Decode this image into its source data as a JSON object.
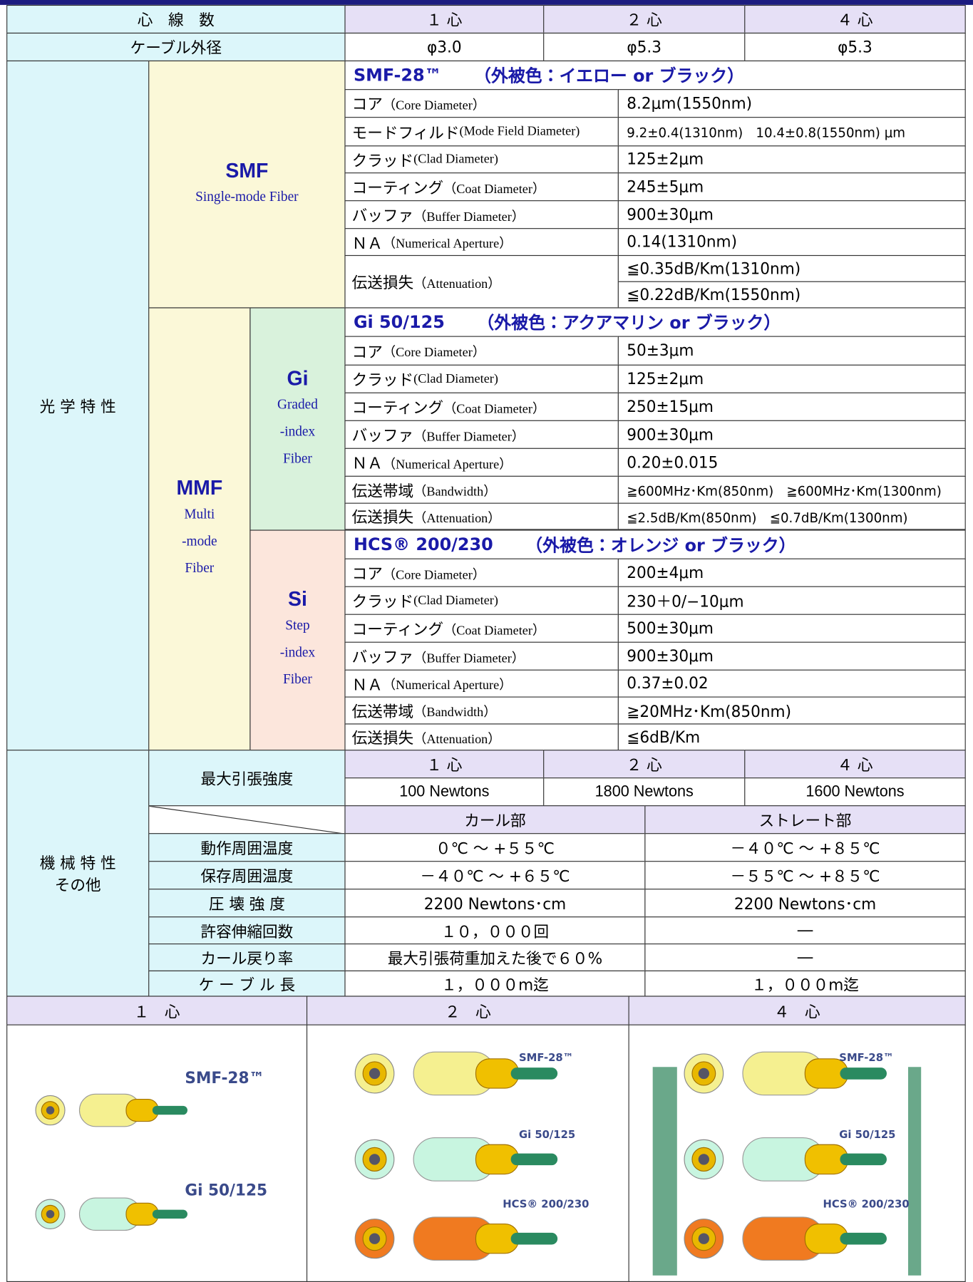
{
  "header": {
    "label": "心　線　数",
    "cols": [
      "１ 心",
      "２ 心",
      "４ 心"
    ]
  },
  "diameter": {
    "label": "ケーブル外径",
    "values": [
      "φ3.0",
      "φ5.3",
      "φ5.3"
    ]
  },
  "optical": {
    "label": "光 学 特 性",
    "smf": {
      "name": "SMF",
      "desc": [
        "Single-mode Fiber"
      ],
      "fiber": "SMF-28™",
      "jacket": "（外被色：イエロー or ブラック）",
      "rows": [
        {
          "ja": "コア",
          "en": "（Core Diameter）",
          "values": [
            "8.2μm(1550nm)"
          ]
        },
        {
          "ja": "モードフィルド",
          "en": "(Mode Field Diameter)",
          "values": [
            "9.2±0.4(1310nm)　10.4±0.8(1550nm) μm"
          ]
        },
        {
          "ja": "クラッド",
          "en": "(Clad Diameter)",
          "values": [
            "125±2μm"
          ]
        },
        {
          "ja": "コーティング",
          "en": "（Coat Diameter）",
          "values": [
            "245±5μm"
          ]
        },
        {
          "ja": "バッファ",
          "en": "（Buffer Diameter）",
          "values": [
            "900±30μm"
          ]
        },
        {
          "ja": "ＮＡ",
          "en": "（Numerical Aperture）",
          "values": [
            "0.14(1310nm)"
          ]
        },
        {
          "ja": "伝送損失",
          "en": "（Attenuation）",
          "values": [
            "≦0.35dB/Km(1310nm)",
            "≦0.22dB/Km(1550nm)"
          ]
        }
      ]
    },
    "mmf": {
      "name": "MMF",
      "desc": [
        "Multi",
        "-mode",
        "Fiber"
      ]
    },
    "gi": {
      "name": "Gi",
      "desc": [
        "Graded",
        "-index",
        "Fiber"
      ],
      "fiber": "Gi 50/125",
      "jacket": "（外被色：アクアマリン or ブラック）",
      "rows": [
        {
          "ja": "コア",
          "en": "（Core Diameter）",
          "values": [
            "50±3μm"
          ]
        },
        {
          "ja": "クラッド",
          "en": "(Clad Diameter)",
          "values": [
            "125±2μm"
          ]
        },
        {
          "ja": "コーティング",
          "en": "（Coat Diameter）",
          "values": [
            "250±15μm"
          ]
        },
        {
          "ja": "バッファ",
          "en": "（Buffer Diameter）",
          "values": [
            "900±30μm"
          ]
        },
        {
          "ja": "ＮＡ",
          "en": "（Numerical Aperture）",
          "values": [
            "0.20±0.015"
          ]
        },
        {
          "ja": "伝送帯域",
          "en": "（Bandwidth）",
          "values": [
            "≧600MHz･Km(850nm)　≧600MHz･Km(1300nm)"
          ]
        },
        {
          "ja": "伝送損失",
          "en": "（Attenuation）",
          "values": [
            "≦2.5dB/Km(850nm)　≦0.7dB/Km(1300nm)"
          ]
        }
      ]
    },
    "si": {
      "name": "Si",
      "desc": [
        "Step",
        "-index",
        "Fiber"
      ],
      "fiber": "HCS® 200/230",
      "jacket": "（外被色：オレンジ or ブラック）",
      "rows": [
        {
          "ja": "コア",
          "en": "（Core Diameter）",
          "values": [
            "200±4μm"
          ]
        },
        {
          "ja": "クラッド",
          "en": "(Clad Diameter)",
          "values": [
            "230＋0/−10μm"
          ]
        },
        {
          "ja": "コーティング",
          "en": "（Coat Diameter）",
          "values": [
            "500±30μm"
          ]
        },
        {
          "ja": "バッファ",
          "en": "（Buffer Diameter）",
          "values": [
            "900±30μm"
          ]
        },
        {
          "ja": "ＮＡ",
          "en": "（Numerical Aperture）",
          "values": [
            "0.37±0.02"
          ]
        },
        {
          "ja": "伝送帯域",
          "en": "（Bandwidth）",
          "values": [
            "≧20MHz･Km(850nm)"
          ]
        },
        {
          "ja": "伝送損失",
          "en": "（Attenuation）",
          "values": [
            "≦6dB/Km"
          ]
        }
      ]
    }
  },
  "mechanical": {
    "label": [
      "機 械 特 性",
      "その他"
    ],
    "tensile": {
      "label": "最大引張強度",
      "cols": [
        "１ 心",
        "２ 心",
        "４ 心"
      ],
      "values": [
        "100 Newtons",
        "1800 Newtons",
        "1600 Newtons"
      ]
    },
    "parts": [
      "カール部",
      "ストレート部"
    ],
    "rows": [
      {
        "label": "動作周囲温度",
        "values": [
          "０℃ ～ +５５℃",
          "－４０℃ ～ +８５℃"
        ]
      },
      {
        "label": "保存周囲温度",
        "values": [
          "－４０℃ ～ +６５℃",
          "－５５℃ ～ +８５℃"
        ]
      },
      {
        "label": "圧 壊 強 度",
        "values": [
          "2200 Newtons･cm",
          "2200 Newtons･cm"
        ]
      },
      {
        "label": "許容伸縮回数",
        "values": [
          "１０，０００回",
          "―"
        ]
      },
      {
        "label": "カール戻り率",
        "values": [
          "最大引張荷重加えた後で６０%",
          "―"
        ]
      },
      {
        "label": "ケ ー ブ ル 長",
        "values": [
          "１，０００m迄",
          "１，０００m迄"
        ]
      }
    ]
  },
  "images": {
    "cols": [
      "１　心",
      "２　心",
      "４　心"
    ],
    "panels": [
      [
        "SMF-28™",
        "Gi 50/125"
      ],
      [
        "SMF-28™",
        "Gi 50/125",
        "HCS® 200/230"
      ],
      [
        "SMF-28™",
        "Gi 50/125",
        "HCS® 200/230"
      ]
    ]
  }
}
